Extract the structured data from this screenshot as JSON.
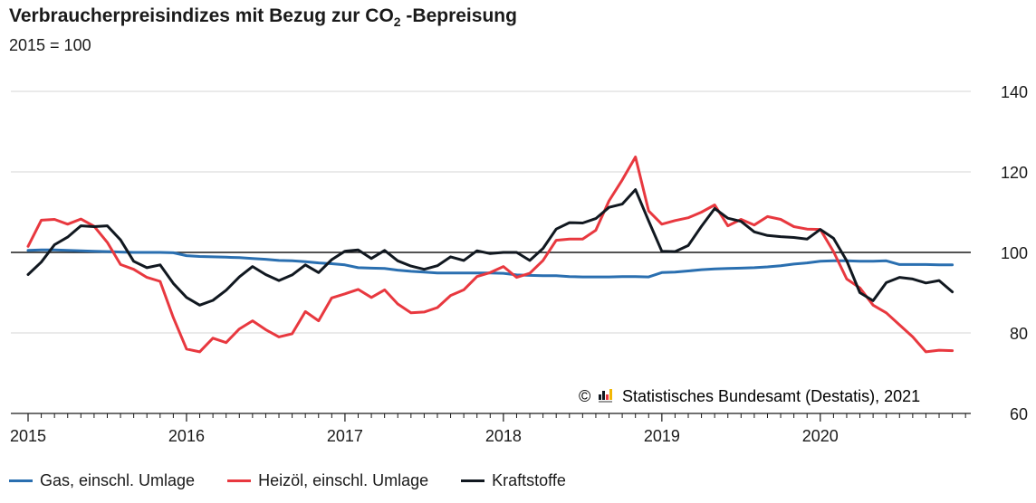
{
  "title": {
    "prefix": "Verbraucherpreisindizes mit Bezug zur CO",
    "subscript": "2",
    "suffix": " -Bepreisung"
  },
  "subtitle": "2015 = 100",
  "source": "Statistisches Bundesamt (Destatis), 2021",
  "copyright_symbol": "©",
  "chart_data": {
    "type": "line",
    "title": "Verbraucherpreisindizes mit Bezug zur CO2 -Bepreisung",
    "subtitle": "2015 = 100",
    "xlabel": "",
    "ylabel": "",
    "ylim": [
      60,
      140
    ],
    "yticks": [
      60,
      80,
      100,
      120,
      140
    ],
    "xlim": [
      "2015-01",
      "2020-12"
    ],
    "xtick_labels": [
      "2015",
      "2016",
      "2017",
      "2018",
      "2019",
      "2020"
    ],
    "reference_line": 100,
    "grid": "horizontal",
    "y_axis_position": "right",
    "legend_position": "bottom",
    "colors": {
      "gas": "#2a6fb0",
      "heizoel": "#e8383f",
      "kraftstoffe": "#111820"
    },
    "x": [
      "2015-01",
      "2015-02",
      "2015-03",
      "2015-04",
      "2015-05",
      "2015-06",
      "2015-07",
      "2015-08",
      "2015-09",
      "2015-10",
      "2015-11",
      "2015-12",
      "2016-01",
      "2016-02",
      "2016-03",
      "2016-04",
      "2016-05",
      "2016-06",
      "2016-07",
      "2016-08",
      "2016-09",
      "2016-10",
      "2016-11",
      "2016-12",
      "2017-01",
      "2017-02",
      "2017-03",
      "2017-04",
      "2017-05",
      "2017-06",
      "2017-07",
      "2017-08",
      "2017-09",
      "2017-10",
      "2017-11",
      "2017-12",
      "2018-01",
      "2018-02",
      "2018-03",
      "2018-04",
      "2018-05",
      "2018-06",
      "2018-07",
      "2018-08",
      "2018-09",
      "2018-10",
      "2018-11",
      "2018-12",
      "2019-01",
      "2019-02",
      "2019-03",
      "2019-04",
      "2019-05",
      "2019-06",
      "2019-07",
      "2019-08",
      "2019-09",
      "2019-10",
      "2019-11",
      "2019-12",
      "2020-01",
      "2020-02",
      "2020-03",
      "2020-04",
      "2020-05",
      "2020-06",
      "2020-07",
      "2020-08",
      "2020-09",
      "2020-10",
      "2020-11"
    ],
    "series": [
      {
        "name": "Gas, einschl. Umlage",
        "color": "#2a6fb0",
        "values": [
          100.5,
          100.6,
          100.6,
          100.5,
          100.4,
          100.3,
          100.2,
          100.1,
          100.0,
          100.0,
          100.0,
          99.9,
          99.2,
          99.0,
          98.9,
          98.8,
          98.7,
          98.5,
          98.3,
          98.0,
          97.9,
          97.7,
          97.4,
          97.2,
          96.9,
          96.2,
          96.1,
          96.0,
          95.6,
          95.3,
          95.1,
          94.9,
          94.9,
          94.9,
          94.9,
          94.9,
          94.8,
          94.4,
          94.3,
          94.2,
          94.2,
          94.0,
          93.9,
          93.9,
          93.9,
          94.0,
          94.0,
          93.9,
          95.0,
          95.1,
          95.4,
          95.7,
          95.9,
          96.0,
          96.1,
          96.2,
          96.4,
          96.7,
          97.1,
          97.4,
          97.8,
          97.9,
          97.9,
          97.8,
          97.8,
          97.9,
          97.0,
          97.0,
          97.0,
          96.9,
          96.9
        ]
      },
      {
        "name": "Heizöl, einschl. Umlage",
        "color": "#e8383f",
        "values": [
          101.5,
          108.0,
          108.2,
          107.0,
          108.3,
          106.5,
          102.5,
          97.0,
          95.8,
          93.8,
          92.8,
          83.8,
          76.0,
          75.3,
          78.7,
          77.6,
          81.0,
          83.0,
          80.8,
          79.0,
          79.8,
          85.3,
          83.0,
          88.7,
          89.7,
          90.8,
          88.8,
          90.7,
          87.2,
          85.0,
          85.2,
          86.3,
          89.3,
          90.7,
          94.0,
          95.0,
          96.5,
          93.8,
          94.8,
          98.0,
          103.0,
          103.3,
          103.3,
          105.5,
          112.8,
          118.0,
          123.7,
          110.3,
          107.0,
          107.9,
          108.6,
          110.0,
          111.8,
          106.6,
          108.2,
          106.8,
          108.9,
          108.2,
          106.4,
          105.8,
          105.7,
          100.2,
          93.4,
          91.2,
          86.9,
          85.0,
          82.0,
          79.0,
          75.3,
          75.7,
          75.6
        ]
      },
      {
        "name": "Kraftstoffe",
        "color": "#111820",
        "values": [
          94.5,
          97.6,
          101.9,
          103.8,
          106.6,
          106.4,
          106.6,
          103.1,
          97.8,
          96.2,
          96.9,
          92.3,
          88.8,
          86.9,
          88.1,
          90.6,
          93.9,
          96.5,
          94.5,
          93.0,
          94.4,
          96.9,
          95.0,
          98.2,
          100.3,
          100.6,
          98.5,
          100.5,
          97.9,
          96.6,
          95.8,
          96.7,
          98.9,
          98.0,
          100.4,
          99.7,
          100.0,
          100.0,
          98.0,
          101.0,
          105.8,
          107.4,
          107.3,
          108.4,
          111.2,
          112.0,
          115.6,
          107.8,
          100.3,
          100.2,
          101.7,
          106.5,
          110.9,
          108.5,
          107.7,
          105.1,
          104.2,
          103.9,
          103.7,
          103.3,
          105.7,
          103.5,
          97.9,
          90.0,
          88.0,
          92.5,
          93.8,
          93.4,
          92.4,
          93.0,
          90.2
        ]
      }
    ]
  }
}
